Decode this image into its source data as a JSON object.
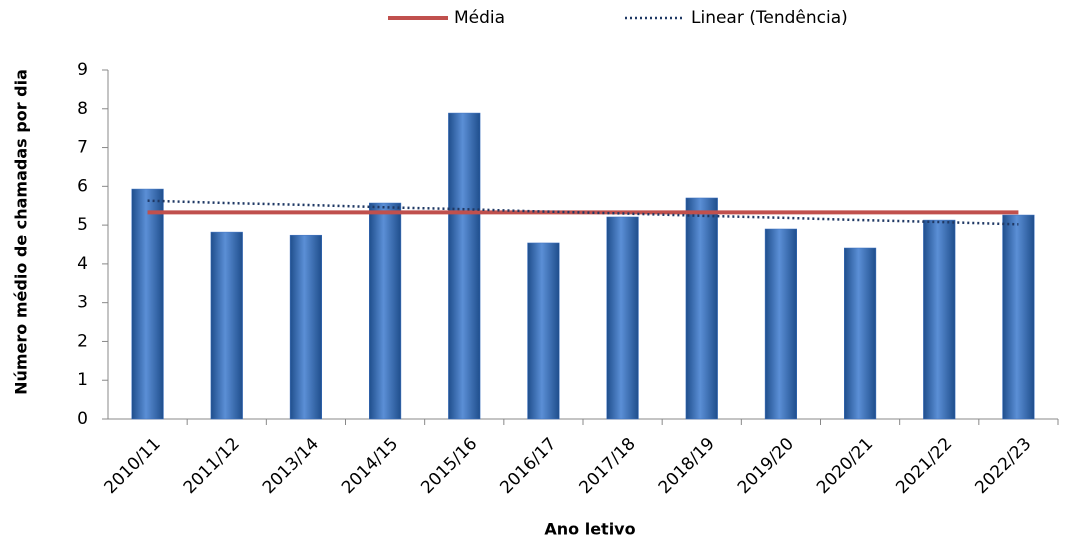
{
  "chart_data": {
    "type": "bar",
    "x_label": "Ano letivo",
    "y_label": "Número médio de  chamadas por dia",
    "categories": [
      "2010/11",
      "2011/12",
      "2013/14",
      "2014/15",
      "2015/16",
      "2016/17",
      "2017/18",
      "2018/19",
      "2019/20",
      "2020/21",
      "2021/22",
      "2022/23"
    ],
    "series": [
      {
        "type": "bar",
        "color": "#3a6fc0",
        "values": [
          5.93,
          4.82,
          4.74,
          5.57,
          7.89,
          4.54,
          5.21,
          5.7,
          4.9,
          4.41,
          5.13,
          5.26
        ]
      },
      {
        "name": "Média",
        "type": "line",
        "color": "#c0504d",
        "values": [
          5.33,
          5.33,
          5.33,
          5.33,
          5.33,
          5.33,
          5.33,
          5.33,
          5.33,
          5.33,
          5.33,
          5.33
        ]
      },
      {
        "name": "Linear (Tendência)",
        "type": "line",
        "dash": "dotted",
        "color": "#1f3864",
        "values": [
          5.63,
          5.57,
          5.52,
          5.46,
          5.41,
          5.35,
          5.3,
          5.24,
          5.19,
          5.13,
          5.08,
          5.02
        ]
      }
    ],
    "ylim": [
      0,
      9
    ],
    "yticks": [
      0,
      1,
      2,
      3,
      4,
      5,
      6,
      7,
      8,
      9
    ],
    "grid": false,
    "legend": "top"
  }
}
